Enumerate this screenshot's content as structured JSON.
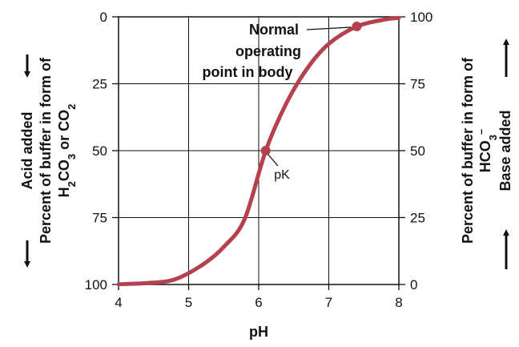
{
  "chart_data": {
    "type": "line",
    "xlabel": "pH",
    "x_ticks": [
      "4",
      "5",
      "6",
      "7",
      "8"
    ],
    "xlim": [
      4,
      8
    ],
    "left_axis": {
      "direction_label": "Acid added",
      "label_line1": "Percent of buffer in form of",
      "label_line2_parts": [
        "H",
        "2",
        "CO",
        "3",
        " or CO",
        "2"
      ],
      "ticks": [
        "0",
        "25",
        "50",
        "75",
        "100"
      ],
      "ylim": [
        100,
        0
      ]
    },
    "right_axis": {
      "label_line1": "Percent of buffer in form of",
      "label_line2_parts": [
        "HCO",
        "3",
        "–"
      ],
      "direction_label": "Base added",
      "ticks": [
        "100",
        "75",
        "50",
        "25",
        "0"
      ],
      "ylim": [
        0,
        100
      ]
    },
    "series": [
      {
        "color": "#b5404f",
        "x": [
          4.0,
          4.4,
          4.8,
          5.2,
          5.5,
          5.8,
          6.1,
          6.4,
          6.7,
          7.0,
          7.4,
          7.8,
          8.0
        ],
        "y": [
          0.1,
          0.5,
          1.9,
          7.4,
          14,
          24.5,
          50,
          68,
          81,
          89.9,
          96.4,
          99.0,
          99.6
        ]
      }
    ],
    "markers": [
      {
        "x": 6.1,
        "y": 50,
        "label": "pK"
      },
      {
        "x": 7.4,
        "y": 96.4,
        "label": "Normal operating point in body"
      }
    ],
    "annotations": {
      "normal_lines": [
        "Normal",
        "operating",
        "point in body"
      ],
      "pk": "pK"
    },
    "grid": true
  }
}
